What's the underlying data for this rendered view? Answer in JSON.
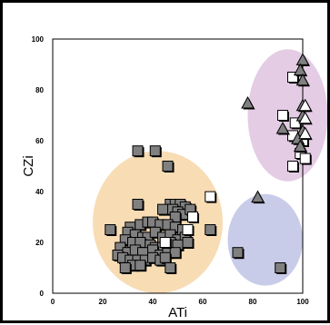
{
  "chart_data": {
    "type": "scatter",
    "title": "",
    "xlabel": "ATi",
    "ylabel": "CZi",
    "xlim": [
      0,
      100
    ],
    "ylim": [
      0,
      100
    ],
    "xticks": [
      0,
      20,
      40,
      60,
      80,
      100
    ],
    "yticks": [
      0,
      20,
      40,
      60,
      80,
      100
    ],
    "xtick_labels": [
      "0",
      "20",
      "40",
      "60",
      "80",
      "100"
    ],
    "ytick_labels": [
      "0",
      "20",
      "40",
      "60",
      "80",
      "100"
    ],
    "grid": false,
    "colors": {
      "filled_square": "#808080",
      "open_square": "#ffffff",
      "triangle": "#808080",
      "open_triangle": "#ffffff",
      "region_orange": "#f8dcb4",
      "region_purple": "#e4cce4",
      "region_blue": "#c8cce8"
    },
    "regions": [
      {
        "color": "region_orange",
        "cx": 42,
        "cy": 28,
        "rx": 26,
        "ry": 28
      },
      {
        "color": "region_purple",
        "cx": 94,
        "cy": 70,
        "rx": 16,
        "ry": 26
      },
      {
        "color": "region_blue",
        "cx": 85,
        "cy": 21,
        "rx": 15,
        "ry": 18
      }
    ],
    "series": [
      {
        "marker": "filled_square",
        "points": [
          [
            34,
            56
          ],
          [
            41,
            56
          ],
          [
            46,
            50
          ],
          [
            34,
            35
          ],
          [
            47,
            35
          ],
          [
            49,
            35
          ],
          [
            51,
            35
          ],
          [
            53,
            34
          ],
          [
            44,
            33
          ],
          [
            48,
            33
          ],
          [
            50,
            32
          ],
          [
            52,
            31
          ],
          [
            55,
            33
          ],
          [
            49,
            30
          ],
          [
            31,
            26
          ],
          [
            35,
            27
          ],
          [
            38,
            28
          ],
          [
            40,
            28
          ],
          [
            43,
            27
          ],
          [
            46,
            27
          ],
          [
            49,
            26
          ],
          [
            52,
            25
          ],
          [
            23,
            25
          ],
          [
            30,
            24
          ],
          [
            33,
            23
          ],
          [
            36,
            22
          ],
          [
            38,
            22
          ],
          [
            41,
            24
          ],
          [
            44,
            22
          ],
          [
            47,
            23
          ],
          [
            50,
            21
          ],
          [
            53,
            22
          ],
          [
            29,
            21
          ],
          [
            32,
            20
          ],
          [
            35,
            20
          ],
          [
            39,
            19
          ],
          [
            41,
            18
          ],
          [
            44,
            18
          ],
          [
            47,
            20
          ],
          [
            50,
            19
          ],
          [
            54,
            20
          ],
          [
            27,
            18
          ],
          [
            30,
            16
          ],
          [
            33,
            17
          ],
          [
            36,
            16
          ],
          [
            40,
            17
          ],
          [
            43,
            15
          ],
          [
            46,
            16
          ],
          [
            49,
            16
          ],
          [
            26,
            15
          ],
          [
            28,
            14
          ],
          [
            31,
            13
          ],
          [
            34,
            13
          ],
          [
            37,
            13
          ],
          [
            40,
            14
          ],
          [
            43,
            13
          ],
          [
            45,
            14
          ],
          [
            32,
            11
          ],
          [
            35,
            11
          ],
          [
            29,
            10
          ],
          [
            47,
            10
          ],
          [
            63,
            25
          ],
          [
            74,
            16
          ],
          [
            91,
            10
          ]
        ]
      },
      {
        "marker": "open_square",
        "points": [
          [
            96,
            85
          ],
          [
            92,
            70
          ],
          [
            97,
            67
          ],
          [
            96,
            62
          ],
          [
            100,
            60
          ],
          [
            99,
            55
          ],
          [
            96,
            50
          ],
          [
            101,
            53
          ],
          [
            63,
            38
          ],
          [
            56,
            30
          ],
          [
            54,
            25
          ],
          [
            45,
            20
          ]
        ]
      },
      {
        "marker": "triangle",
        "points": [
          [
            100,
            92
          ],
          [
            99,
            88
          ],
          [
            100,
            84
          ],
          [
            78,
            75
          ],
          [
            100,
            74
          ],
          [
            100,
            70
          ],
          [
            92,
            65
          ],
          [
            100,
            64
          ],
          [
            98,
            61
          ],
          [
            99,
            58
          ],
          [
            82,
            38
          ]
        ]
      },
      {
        "marker": "open_triangle",
        "points": [
          [
            101,
            74
          ],
          [
            101,
            69
          ],
          [
            101,
            63
          ]
        ]
      }
    ]
  }
}
